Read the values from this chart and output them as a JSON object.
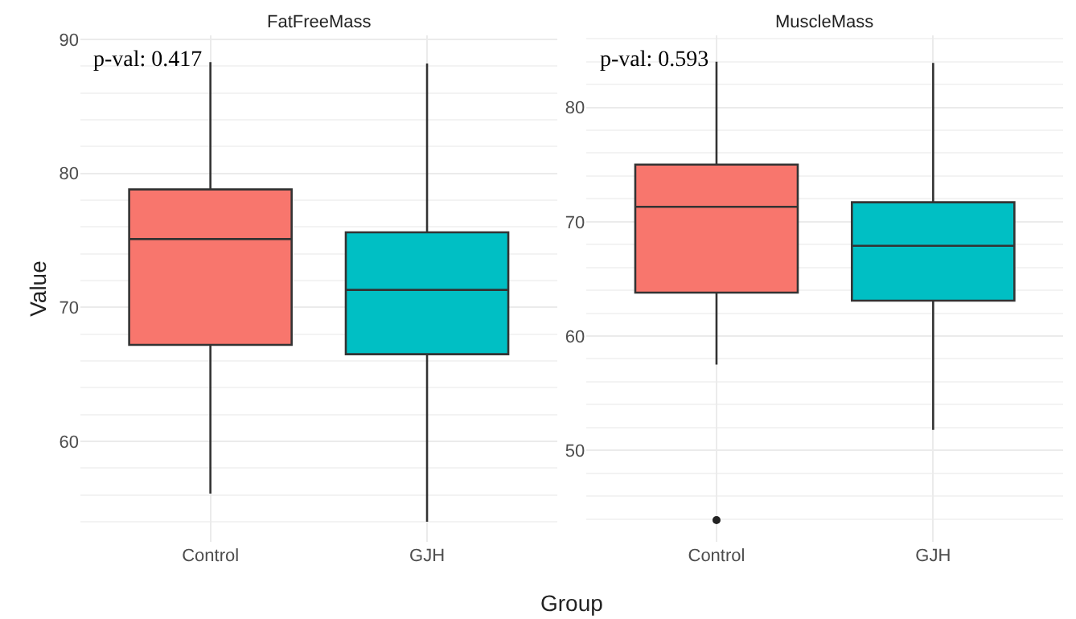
{
  "chart_data": [
    {
      "type": "box",
      "title": "FatFreeMass",
      "ylabel": "Value",
      "xlabel": "Group",
      "categories": [
        "Control",
        "GJH"
      ],
      "colors": [
        "#f8766d",
        "#00bfc4"
      ],
      "boxes": [
        {
          "low": 56.1,
          "q1": 67.2,
          "median": 75.1,
          "q3": 78.8,
          "high": 88.3
        },
        {
          "low": 54.0,
          "q1": 66.5,
          "median": 71.3,
          "q3": 75.6,
          "high": 88.2
        }
      ],
      "ylim": [
        52.5,
        90.3
      ],
      "yticks": [
        60,
        70,
        80,
        90
      ],
      "grid": true,
      "annotations": [
        "p-val: 0.417"
      ]
    },
    {
      "type": "box",
      "title": "MuscleMass",
      "categories": [
        "Control",
        "GJH"
      ],
      "colors": [
        "#f8766d",
        "#00bfc4"
      ],
      "boxes": [
        {
          "low": 57.5,
          "q1": 63.8,
          "median": 71.3,
          "q3": 75.0,
          "high": 84.0,
          "outliers": [
            43.9
          ]
        },
        {
          "low": 51.8,
          "q1": 63.1,
          "median": 67.9,
          "q3": 71.7,
          "high": 83.9
        }
      ],
      "ylim": [
        42.0,
        86.3
      ],
      "yticks": [
        50,
        60,
        70,
        80
      ],
      "grid": true,
      "annotations": [
        "p-val: 0.593"
      ]
    }
  ]
}
